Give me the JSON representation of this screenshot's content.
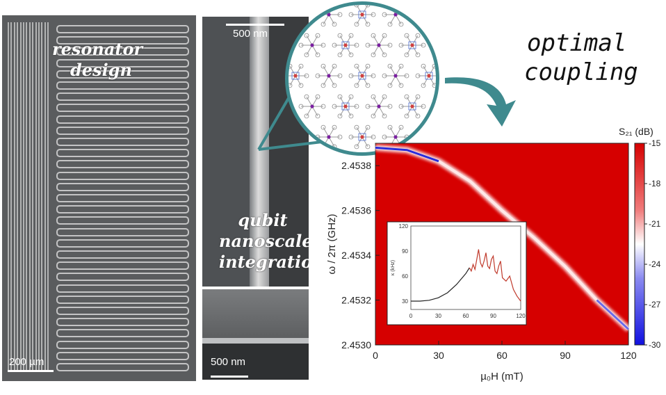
{
  "labels": {
    "resonator_line1": "resonator",
    "resonator_line2": "design",
    "qubit_line1": "qubit",
    "qubit_line2": "nanoscale",
    "qubit_line3": "integration",
    "optimal_line1": "optimal",
    "optimal_line2": "coupling"
  },
  "scale_bars": {
    "left": "200 µm",
    "mid_top": "500 nm",
    "mid_bottom": "500 nm"
  },
  "colors": {
    "teal_accent": "#3f8a8e",
    "heatmap_red": "#d60000",
    "heatmap_blue": "#2b2bd8"
  },
  "chart_data": [
    {
      "type": "heatmap",
      "xlabel": "µ₀H (mT)",
      "ylabel": "ω / 2π (GHz)",
      "colorbar_label": "S₂₁ (dB)",
      "xlim": [
        0,
        120
      ],
      "ylim": [
        2.453,
        2.4539
      ],
      "x_ticks": [
        "0",
        "30",
        "60",
        "90",
        "120"
      ],
      "y_ticks": [
        "2.4530",
        "2.4532",
        "2.4534",
        "2.4536",
        "2.4538"
      ],
      "colorbar_ticks": [
        "-15",
        "-18",
        "-21",
        "-24",
        "-27",
        "-30"
      ],
      "colorbar_range": [
        -30,
        -15
      ],
      "resonance_curve": {
        "x": [
          0,
          15,
          30,
          45,
          60,
          75,
          90,
          105,
          120
        ],
        "y": [
          2.45388,
          2.45387,
          2.45382,
          2.45373,
          2.4536,
          2.45348,
          2.45335,
          2.4532,
          2.45307
        ]
      }
    },
    {
      "type": "line",
      "inset": true,
      "ylabel": "κ (kHz)",
      "xlim": [
        0,
        120
      ],
      "ylim": [
        20,
        120
      ],
      "x_ticks": [
        "0",
        "30",
        "60",
        "90",
        "120"
      ],
      "y_ticks": [
        "30",
        "60",
        "90",
        "120"
      ],
      "series": [
        {
          "color": "#222222",
          "x": [
            0,
            10,
            20,
            30,
            40,
            50,
            60,
            64
          ],
          "y": [
            30,
            30,
            31,
            34,
            40,
            50,
            63,
            70
          ]
        },
        {
          "color": "#c0392b",
          "x": [
            64,
            66,
            68,
            70,
            72,
            74,
            76,
            78,
            80,
            82,
            84,
            86,
            88,
            90,
            92,
            94,
            96,
            98,
            100,
            104,
            108,
            112,
            116,
            120
          ],
          "y": [
            70,
            66,
            74,
            68,
            80,
            92,
            76,
            71,
            78,
            88,
            72,
            69,
            80,
            84,
            66,
            63,
            72,
            78,
            58,
            54,
            60,
            44,
            36,
            30
          ]
        }
      ]
    }
  ]
}
